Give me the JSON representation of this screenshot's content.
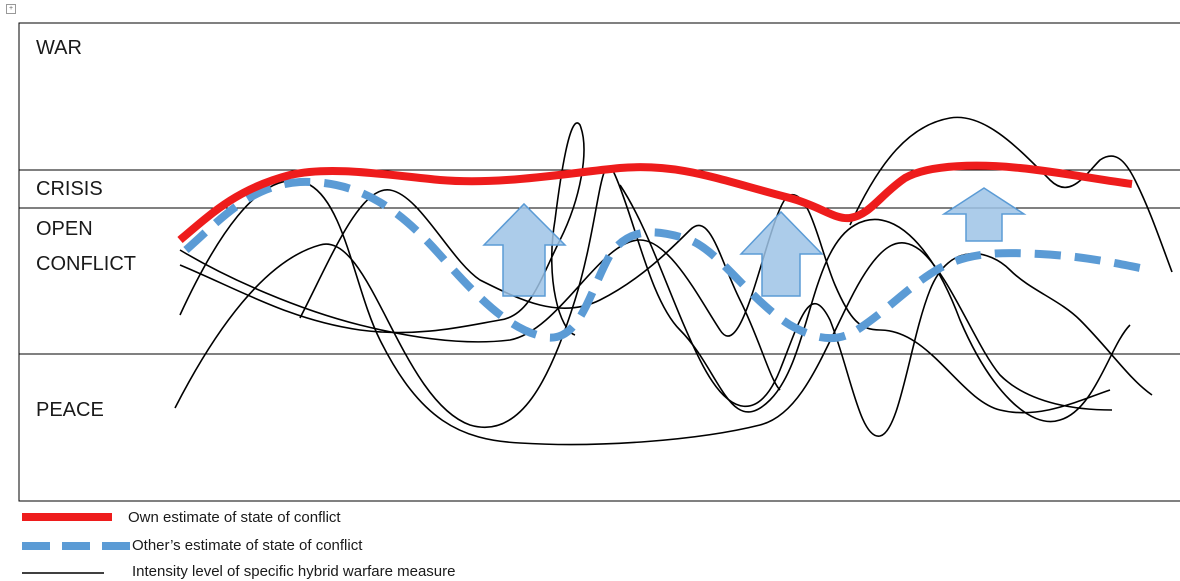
{
  "zones": {
    "war": "WAR",
    "crisis": "CRISIS",
    "open_conflict_line1": "OPEN",
    "open_conflict_line2": "CONFLICT",
    "peace": "PEACE"
  },
  "legend": {
    "own_estimate": "Own estimate of state of conflict",
    "others_estimate": "Other’s estimate of state of conflict",
    "intensity": "Intensity level of specific hybrid warfare measure"
  },
  "colors": {
    "own_estimate": "#ee1c1c",
    "others_estimate": "#5b9bd5",
    "arrow_fill": "#9dc3e6",
    "arrow_stroke": "#5b9bd5",
    "measure_line": "#000000",
    "frame": "#000000"
  },
  "icons": {
    "anchor": "move-handle-icon",
    "arrow": "up-arrow-icon"
  }
}
